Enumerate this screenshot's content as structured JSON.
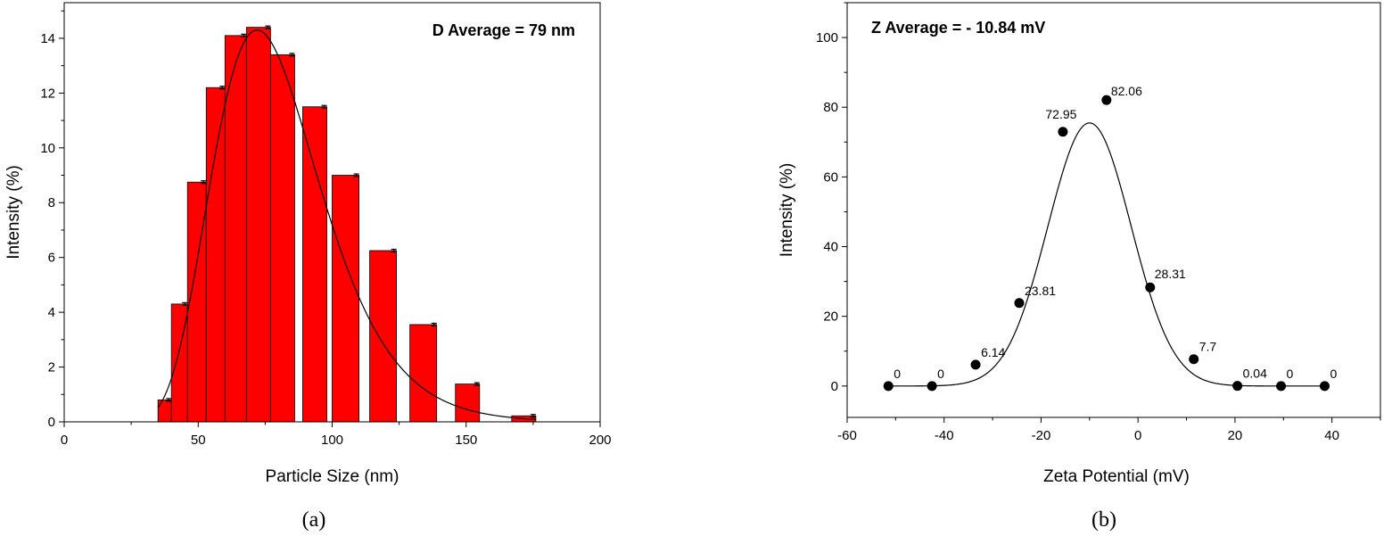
{
  "chart_data": [
    {
      "type": "bar",
      "panel_label": "(a)",
      "annotation": "D Average = 79 nm",
      "xlabel": "Particle Size (nm)",
      "ylabel": "Intensity (%)",
      "xlim": [
        0,
        200
      ],
      "ylim": [
        0,
        15.3
      ],
      "xticks": [
        0,
        50,
        100,
        150,
        200
      ],
      "yticks": [
        0,
        2,
        4,
        6,
        8,
        10,
        12,
        14
      ],
      "grid": false,
      "colors": {
        "bar": "#ff0000",
        "edge": "#000000",
        "fit": "#000000"
      },
      "bars": [
        {
          "x0": 35,
          "x1": 40,
          "value": 0.8
        },
        {
          "x0": 40,
          "x1": 46,
          "value": 4.3
        },
        {
          "x0": 46,
          "x1": 53,
          "value": 8.75
        },
        {
          "x0": 53,
          "x1": 60,
          "value": 12.2
        },
        {
          "x0": 60,
          "x1": 68,
          "value": 14.1
        },
        {
          "x0": 68,
          "x1": 77,
          "value": 14.4
        },
        {
          "x0": 77,
          "x1": 86,
          "value": 13.4
        },
        {
          "x0": 89,
          "x1": 98,
          "value": 11.5
        },
        {
          "x0": 100,
          "x1": 110,
          "value": 9.0
        },
        {
          "x0": 114,
          "x1": 124,
          "value": 6.25
        },
        {
          "x0": 129,
          "x1": 139,
          "value": 3.55
        },
        {
          "x0": 146,
          "x1": 155,
          "value": 1.38
        },
        {
          "x0": 167,
          "x1": 176,
          "value": 0.22
        }
      ],
      "fit": {
        "kind": "lognormal",
        "peak_x": 72,
        "peak_y": 14.3,
        "sigma": 0.28,
        "x_range": [
          35,
          176
        ]
      }
    },
    {
      "type": "scatter",
      "panel_label": "(b)",
      "annotation": "Z Average = - 10.84 mV",
      "xlabel": "Zeta Potential (mV)",
      "ylabel": "Intensity (%)",
      "xlim": [
        -60,
        50
      ],
      "ylim": [
        -9,
        110
      ],
      "xticks": [
        -60,
        -40,
        -20,
        0,
        20,
        40
      ],
      "yticks": [
        0,
        20,
        40,
        60,
        80,
        100
      ],
      "grid": false,
      "colors": {
        "point": "#000000",
        "fit": "#000000"
      },
      "points": [
        {
          "x": -51.5,
          "y": 0,
          "label": "0"
        },
        {
          "x": -42.5,
          "y": 0,
          "label": "0"
        },
        {
          "x": -33.5,
          "y": 6.14,
          "label": "6.14"
        },
        {
          "x": -24.5,
          "y": 23.81,
          "label": "23.81"
        },
        {
          "x": -15.5,
          "y": 72.95,
          "label": "72.95"
        },
        {
          "x": -6.5,
          "y": 82.06,
          "label": "82.06"
        },
        {
          "x": 2.5,
          "y": 28.31,
          "label": "28.31"
        },
        {
          "x": 11.5,
          "y": 7.7,
          "label": "7.7"
        },
        {
          "x": 20.5,
          "y": 0.04,
          "label": "0.04"
        },
        {
          "x": 29.5,
          "y": 0,
          "label": "0"
        },
        {
          "x": 38.5,
          "y": 0,
          "label": "0"
        }
      ],
      "fit": {
        "kind": "gaussian",
        "center": -10,
        "amplitude": 75.5,
        "sigma": 8.6,
        "x_range": [
          -51.5,
          38.5
        ]
      }
    }
  ]
}
